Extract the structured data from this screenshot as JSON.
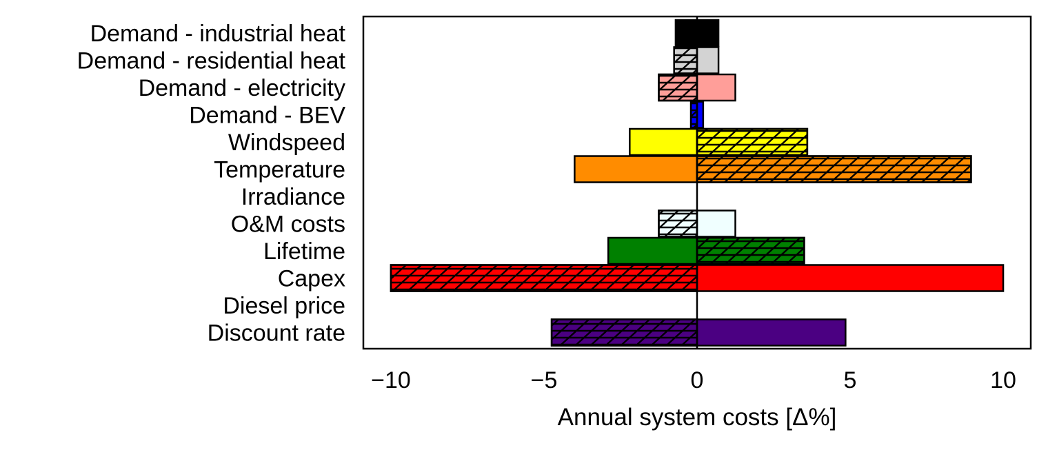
{
  "chart_data": {
    "type": "bar",
    "orientation": "horizontal",
    "title": "",
    "xlabel": "Annual system costs [Δ%]",
    "ylabel": "",
    "xlim": [
      -10.9,
      10.9
    ],
    "xticks": [
      -10,
      -5,
      0,
      5,
      10
    ],
    "xtick_labels": [
      "−10",
      "−5",
      "0",
      "5",
      "10"
    ],
    "grid": false,
    "legend": "none",
    "hatch_note": "negative-side hatched for all but Windspeed, Temperature, Lifetime (hatched on positive side)",
    "categories": [
      {
        "label": "Demand - industrial heat",
        "low": -0.7,
        "high": 0.7,
        "color": "#000000",
        "hatch": "none"
      },
      {
        "label": "Demand - residential heat",
        "low": -0.75,
        "high": 0.7,
        "color": "#d3d3d3",
        "hatch": "low"
      },
      {
        "label": "Demand - electricity",
        "low": -1.25,
        "high": 1.25,
        "color": "#ff9e99",
        "hatch": "low"
      },
      {
        "label": "Demand - BEV",
        "low": -0.2,
        "high": 0.2,
        "color": "#0000ff",
        "hatch": "low"
      },
      {
        "label": "Windspeed",
        "low": -2.2,
        "high": 3.6,
        "color": "#ffff00",
        "hatch": "high"
      },
      {
        "label": "Temperature",
        "low": -4.0,
        "high": 8.95,
        "color": "#ff8c00",
        "hatch": "high"
      },
      {
        "label": "Irradiance",
        "low": 0,
        "high": 0,
        "color": "#ffffff",
        "hatch": "none"
      },
      {
        "label": "O&M costs",
        "low": -1.25,
        "high": 1.25,
        "color": "#f0ffff",
        "hatch": "low"
      },
      {
        "label": "Lifetime",
        "low": -2.9,
        "high": 3.5,
        "color": "#008000",
        "hatch": "high"
      },
      {
        "label": "Capex",
        "low": -10.0,
        "high": 10.0,
        "color": "#ff0000",
        "hatch": "low"
      },
      {
        "label": "Diesel price",
        "low": 0,
        "high": 0,
        "color": "#ffffff",
        "hatch": "none"
      },
      {
        "label": "Discount rate",
        "low": -4.75,
        "high": 4.85,
        "color": "#4b0082",
        "hatch": "low"
      }
    ]
  }
}
